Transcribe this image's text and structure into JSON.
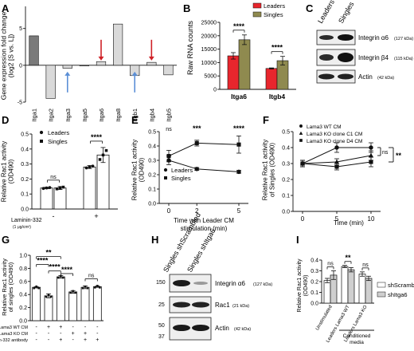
{
  "panel_letters": [
    "A",
    "B",
    "C",
    "D",
    "E",
    "F",
    "G",
    "H",
    "I"
  ],
  "colors": {
    "leaders": "#e8262d",
    "singles": "#8f8a4f",
    "blue_arrow": "#5b8fd6",
    "red_arrow": "#cf2127",
    "dark_bar": "#7a7a7a",
    "light_bar": "#d9d9d9"
  },
  "chart_data": [
    {
      "panel": "A",
      "type": "bar",
      "ylabel": "Gene expression fold change\n(log2 [S vs. L])",
      "ylim": [
        -5,
        8
      ],
      "yticks": [
        -5,
        0,
        5
      ],
      "categories": [
        "Itga1",
        "Itga2",
        "Itga3",
        "Itga5",
        "Itga6",
        "Itga8",
        "Itgb1",
        "Itgb4",
        "Itgb5"
      ],
      "values": [
        4.0,
        -4.5,
        -0.4,
        0.0,
        0.5,
        5.6,
        -1.4,
        0.4,
        -1.3
      ],
      "shades": [
        "dark",
        "light",
        "light",
        "light",
        "light",
        "light",
        "light",
        "light",
        "light"
      ],
      "arrows": [
        {
          "category": "Itga3",
          "direction": "up",
          "color": "blue"
        },
        {
          "category": "Itga6",
          "direction": "down",
          "color": "red"
        },
        {
          "category": "Itgb1",
          "direction": "up",
          "color": "blue"
        },
        {
          "category": "Itgb4",
          "direction": "down",
          "color": "red"
        }
      ]
    },
    {
      "panel": "B",
      "type": "bar",
      "ylabel": "Raw RNA counts",
      "ylim": [
        0,
        25000
      ],
      "yticks": [
        "0",
        "5000",
        "10000",
        "15000",
        "20000",
        "25000"
      ],
      "categories": [
        "Itga6",
        "Itgb4"
      ],
      "series": [
        {
          "name": "Leaders",
          "values": [
            12500,
            7800
          ],
          "err": [
            1200,
            200
          ]
        },
        {
          "name": "Singles",
          "values": [
            18500,
            10700
          ],
          "err": [
            1800,
            1600
          ]
        }
      ],
      "significance": [
        "****",
        "****"
      ]
    },
    {
      "panel": "D",
      "type": "bar",
      "ylabel": "Relative Rac1 activity\n(OD490)",
      "ylim": [
        0,
        0.5
      ],
      "yticks": [
        "0.0",
        "0.1",
        "0.2",
        "0.3",
        "0.4",
        "0.5"
      ],
      "xlabel": "Laminin-332",
      "x_unit": "(1 μg/cm²)",
      "categories": [
        "-",
        "+"
      ],
      "series": [
        {
          "name": "Leaders",
          "values": [
            0.14,
            0.28
          ],
          "err": [
            0.005,
            0.01
          ]
        },
        {
          "name": "Singles",
          "values": [
            0.14,
            0.36
          ],
          "err": [
            0.01,
            0.05
          ]
        }
      ],
      "significance": [
        "ns",
        "****"
      ]
    },
    {
      "panel": "E",
      "type": "line",
      "ylabel": "Relative Rac1 activity\n(OD490)",
      "xlabel": "Time with Leader CM\nstimulation (min)",
      "x": [
        0,
        2,
        5
      ],
      "xticks": [
        "0",
        "2",
        "5"
      ],
      "ylim": [
        0.0,
        0.5
      ],
      "yticks": [
        "0.0",
        "0.1",
        "0.2",
        "0.3",
        "0.4",
        "0.5"
      ],
      "series": [
        {
          "name": "Leaders",
          "values": [
            0.3,
            0.24,
            0.22
          ],
          "err": [
            0.03,
            0.01,
            0.01
          ]
        },
        {
          "name": "Singles",
          "values": [
            0.33,
            0.42,
            0.41
          ],
          "err": [
            0.04,
            0.02,
            0.06
          ]
        }
      ],
      "significance": [
        "ns",
        "***",
        "****"
      ]
    },
    {
      "panel": "F",
      "type": "line",
      "ylabel": "Relative Rac1 activity\nof Singles (OD490)",
      "xlabel": "Time (min)",
      "x": [
        0,
        5,
        10
      ],
      "xticks": [
        "0",
        "5",
        "10"
      ],
      "ylim": [
        0.0,
        0.5
      ],
      "yticks": [
        "0.0",
        "0.1",
        "0.2",
        "0.3",
        "0.4",
        "0.5"
      ],
      "series": [
        {
          "name": "Lama3 WT CM",
          "values": [
            0.3,
            0.4,
            0.4
          ],
          "err": [
            0.02,
            0.03,
            0.03
          ]
        },
        {
          "name": "Lama3 KO clone C1 CM",
          "values": [
            0.3,
            0.31,
            0.35
          ],
          "err": [
            0.02,
            0.02,
            0.03
          ]
        },
        {
          "name": "Lama3 KO clone D4 CM",
          "values": [
            0.3,
            0.28,
            0.31
          ],
          "err": [
            0.02,
            0.02,
            0.03
          ]
        }
      ],
      "significance": [
        "ns",
        "**"
      ]
    },
    {
      "panel": "G",
      "type": "bar",
      "ylabel": "Relative Rac1 activity\nof singles (OD490)",
      "ylim": [
        0,
        1.0
      ],
      "yticks": [
        "0.0",
        "0.2",
        "0.4",
        "0.6",
        "0.8",
        "1.0"
      ],
      "row_labels": [
        "Lama3 WT CM",
        "Lama3 KO CM",
        "Laminin-332 antibody"
      ],
      "conditions": [
        [
          "-",
          "-",
          "-"
        ],
        [
          "+",
          "-",
          "-"
        ],
        [
          "+",
          "-",
          "+"
        ],
        [
          "-",
          "+",
          "-"
        ],
        [
          "-",
          "+",
          "+"
        ],
        [
          "-",
          "-",
          "+"
        ]
      ],
      "values": [
        0.51,
        0.38,
        0.67,
        0.44,
        0.51,
        0.52
      ],
      "err": [
        0.01,
        0.03,
        0.02,
        0.02,
        0.02,
        0.01
      ],
      "significance": [
        "**",
        "****",
        "****",
        "****",
        "ns"
      ]
    },
    {
      "panel": "I",
      "type": "bar",
      "ylabel": "Relative Rac1 activity\n(OD490)",
      "ylim": [
        0,
        0.4
      ],
      "yticks": [
        "0.0",
        "0.1",
        "0.2",
        "0.3",
        "0.4"
      ],
      "categories": [
        "Unstimulated",
        "Leaders Lama3 WT",
        "Leaders Lama3 KO"
      ],
      "group_label": "Conditioned\nmedia",
      "series": [
        {
          "name": "shScrambled",
          "values": [
            0.21,
            0.34,
            0.27
          ],
          "err": [
            0.02,
            0.01,
            0.02
          ]
        },
        {
          "name": "shItga6",
          "values": [
            0.26,
            0.31,
            0.23
          ],
          "err": [
            0.04,
            0.02,
            0.02
          ]
        }
      ],
      "significance": [
        "ns",
        "**",
        "ns"
      ]
    }
  ],
  "blots": {
    "C": {
      "columns": [
        "Leaders",
        "Singles"
      ],
      "rows": [
        {
          "name": "Integrin α6",
          "size": "(127 kDa)"
        },
        {
          "name": "Integrin β4",
          "size": "(115 kDa)"
        },
        {
          "name": "Actin",
          "size": "(42 kDa)"
        }
      ]
    },
    "H": {
      "columns": [
        "Singles shScrambled",
        "Singles shItga6"
      ],
      "markers": [
        "150",
        "25",
        "50",
        "37"
      ],
      "rows": [
        {
          "name": "Integrin α6",
          "size": "(127 kDa)"
        },
        {
          "name": "Rac1",
          "size": "(21 kDa)"
        },
        {
          "name": "Actin",
          "size": "(42 kDa)"
        }
      ]
    }
  }
}
